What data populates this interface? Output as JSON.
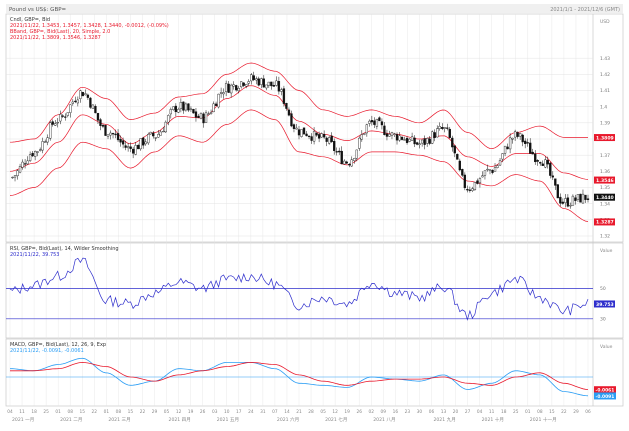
{
  "window": {
    "title": "Pound vs US$: GBP=",
    "date_range": "2021/1/1 - 2021/12/6 (GMT)"
  },
  "legend": {
    "ohlc_title": "Cndl, GBP=, Bid",
    "ohlc_values": "2021/11/22, 1.3453, 1.3457, 1.3428, 1.3440, -0.0012, (-0.09%)",
    "boll_title": "BBand, GBP=, Bid(Last), 20, Simple, 2.0",
    "boll_values": "2021/11/22, 1.3809, 1.3546, 1.3287",
    "rsi_title": "RSI, GBP=, Bid(Last), 14, Wilder Smoothing",
    "rsi_values": "2021/11/22, 39.753",
    "macd_title": "MACD, GBP=, Bid(Last), 12, 26, 9, Exp",
    "macd_values": "2021/11/22, -0.0091, -0.0061"
  },
  "price_axis": [
    "USD",
    "1.43",
    "1.42",
    "1.41",
    "1.4",
    "1.39",
    "1.38",
    "1.37",
    "1.36",
    "1.35",
    "1.34",
    "1.33",
    "1.32"
  ],
  "price_badges": [
    {
      "text": "1.3809",
      "value": 1.3809,
      "color": "#e8192c"
    },
    {
      "text": "1.3546",
      "value": 1.3546,
      "color": "#e8192c"
    },
    {
      "text": "1.3440",
      "value": 1.344,
      "color": "#111111"
    },
    {
      "text": "1.3287",
      "value": 1.3287,
      "color": "#e8192c"
    }
  ],
  "rsi_axis": [
    "Value",
    "50",
    "39.753",
    "30"
  ],
  "rsi_badge": {
    "text": "39.753",
    "value": 39.753,
    "color": "#2e2ecc"
  },
  "macd_axis": [
    "Value",
    "-0.0061",
    "-0.0091"
  ],
  "macd_badges": [
    {
      "text": "-0.0061",
      "value": -0.0061,
      "color": "#e8192c"
    },
    {
      "text": "-0.0091",
      "value": -0.0091,
      "color": "#2a9df4"
    }
  ],
  "x_axis": {
    "day_ticks": [
      "04",
      "11",
      "18",
      "25",
      "01",
      "08",
      "15",
      "22",
      "01",
      "08",
      "15",
      "22",
      "29",
      "05",
      "12",
      "19",
      "26",
      "03",
      "10",
      "17",
      "24",
      "31",
      "07",
      "14",
      "21",
      "28",
      "05",
      "12",
      "19",
      "26",
      "02",
      "09",
      "16",
      "23",
      "30",
      "06",
      "13",
      "20",
      "27",
      "04",
      "11",
      "18",
      "25",
      "01",
      "08",
      "15",
      "22",
      "29",
      "06"
    ],
    "month_labels": [
      "2021 一月",
      "2021 二月",
      "2021 三月",
      "2021 四月",
      "2021 五月",
      "2021 六月",
      "2021 七月",
      "2021 八月",
      "2021 九月",
      "2021 十月",
      "2021 十一月"
    ]
  },
  "colors": {
    "candle_up": "#ffffff",
    "candle_down": "#111111",
    "wick": "#111111",
    "boll": "#e8192c",
    "rsi": "#2e2ecc",
    "rsi_band": "#2e2ecc",
    "macd": "#2a9df4",
    "signal": "#e8192c",
    "grid": "#e3e3e3",
    "panel_border": "#c8c8c8"
  },
  "chart_data": [
    {
      "type": "candlestick",
      "title": "Cndl, GBP=, Bid",
      "ylim": [
        1.32,
        1.44
      ],
      "series": [
        {
          "name": "Cndl, GBP=, Bid",
          "x": [
            "2021-01-04",
            "2021-01-25",
            "2021-02-15",
            "2021-02-24",
            "2021-03-08",
            "2021-03-23",
            "2021-04-05",
            "2021-04-19",
            "2021-05-03",
            "2021-05-17",
            "2021-06-01",
            "2021-06-14",
            "2021-06-28",
            "2021-07-12",
            "2021-07-20",
            "2021-08-02",
            "2021-08-16",
            "2021-08-30",
            "2021-09-13",
            "2021-09-29",
            "2021-10-11",
            "2021-10-20",
            "2021-11-01",
            "2021-11-12",
            "2021-11-22"
          ],
          "close": [
            1.356,
            1.372,
            1.392,
            1.409,
            1.385,
            1.374,
            1.382,
            1.4,
            1.393,
            1.412,
            1.417,
            1.413,
            1.385,
            1.38,
            1.366,
            1.39,
            1.382,
            1.377,
            1.386,
            1.35,
            1.361,
            1.382,
            1.368,
            1.341,
            1.344
          ]
        },
        {
          "name": "BBand, GBP=, Bid(Last), 20, Simple, 2.0",
          "upper": [
            1.378,
            1.38,
            1.395,
            1.412,
            1.405,
            1.392,
            1.396,
            1.406,
            1.408,
            1.42,
            1.427,
            1.422,
            1.41,
            1.398,
            1.394,
            1.398,
            1.394,
            1.39,
            1.398,
            1.384,
            1.374,
            1.384,
            1.388,
            1.381,
            1.381
          ],
          "middle": [
            1.36,
            1.365,
            1.378,
            1.395,
            1.389,
            1.377,
            1.384,
            1.394,
            1.393,
            1.405,
            1.413,
            1.407,
            1.391,
            1.383,
            1.379,
            1.385,
            1.383,
            1.38,
            1.382,
            1.369,
            1.363,
            1.371,
            1.371,
            1.359,
            1.355
          ],
          "lower": [
            1.345,
            1.35,
            1.362,
            1.378,
            1.374,
            1.362,
            1.372,
            1.382,
            1.378,
            1.389,
            1.398,
            1.392,
            1.372,
            1.369,
            1.364,
            1.372,
            1.372,
            1.37,
            1.366,
            1.354,
            1.351,
            1.358,
            1.354,
            1.337,
            1.329
          ]
        }
      ]
    },
    {
      "type": "line",
      "title": "RSI, GBP=, Bid(Last), 14, Wilder Smoothing",
      "ylim": [
        20,
        70
      ],
      "series": [
        {
          "name": "RSI, GBP=, Bid(Last), 14, Wilder Smoothing",
          "x": [
            "2021-01-04",
            "2021-01-25",
            "2021-02-15",
            "2021-02-24",
            "2021-03-08",
            "2021-03-23",
            "2021-04-05",
            "2021-04-19",
            "2021-05-03",
            "2021-05-17",
            "2021-06-01",
            "2021-06-14",
            "2021-06-28",
            "2021-07-12",
            "2021-07-20",
            "2021-08-02",
            "2021-08-16",
            "2021-08-30",
            "2021-09-13",
            "2021-09-29",
            "2021-10-11",
            "2021-10-20",
            "2021-11-01",
            "2021-11-12",
            "2021-11-22"
          ],
          "values": [
            48,
            52,
            58,
            68,
            42,
            40,
            47,
            54,
            50,
            56,
            58,
            53,
            39,
            44,
            40,
            54,
            47,
            44,
            51,
            32,
            47,
            56,
            44,
            35,
            40
          ]
        }
      ],
      "bands": [
        30,
        50
      ]
    },
    {
      "type": "line",
      "title": "MACD, GBP=, Bid(Last), 12, 26, 9, Exp",
      "ylim": [
        -0.012,
        0.012
      ],
      "series": [
        {
          "name": "MACD",
          "x": [
            "2021-01-04",
            "2021-01-25",
            "2021-02-15",
            "2021-02-24",
            "2021-03-08",
            "2021-03-23",
            "2021-04-05",
            "2021-04-19",
            "2021-05-03",
            "2021-05-17",
            "2021-06-01",
            "2021-06-14",
            "2021-06-28",
            "2021-07-12",
            "2021-07-20",
            "2021-08-02",
            "2021-08-16",
            "2021-08-30",
            "2021-09-13",
            "2021-09-29",
            "2021-10-11",
            "2021-10-20",
            "2021-11-01",
            "2021-11-12",
            "2021-11-22"
          ],
          "values": [
            0.004,
            0.003,
            0.006,
            0.009,
            0.002,
            -0.004,
            -0.002,
            0.004,
            0.003,
            0.007,
            0.007,
            0.004,
            -0.003,
            -0.004,
            -0.005,
            0.0,
            -0.001,
            -0.002,
            0.001,
            -0.006,
            -0.003,
            0.003,
            0.001,
            -0.007,
            -0.009
          ]
        },
        {
          "name": "Signal",
          "values": [
            0.003,
            0.003,
            0.004,
            0.007,
            0.005,
            0.0,
            -0.002,
            0.001,
            0.003,
            0.005,
            0.007,
            0.006,
            0.001,
            -0.002,
            -0.004,
            -0.002,
            -0.001,
            -0.001,
            0.0,
            -0.003,
            -0.004,
            0.0,
            0.002,
            -0.003,
            -0.006
          ]
        }
      ]
    }
  ]
}
